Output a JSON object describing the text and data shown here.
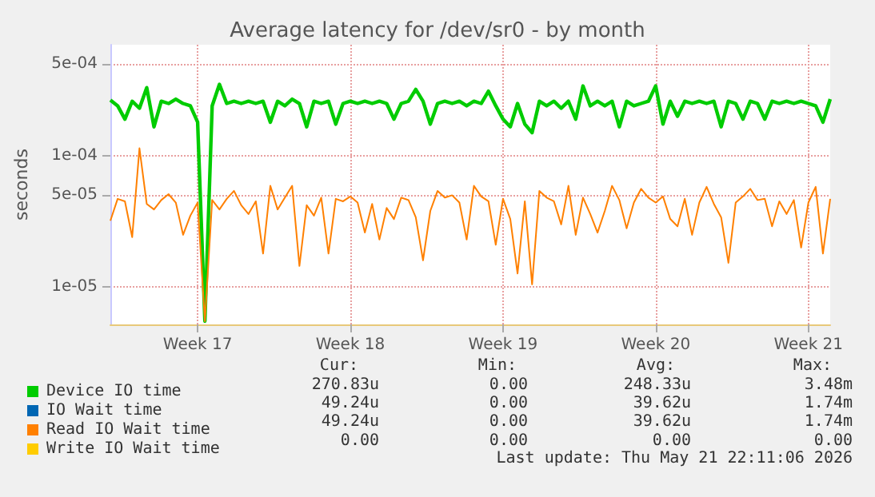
{
  "chart_data": {
    "type": "line",
    "title": "Average latency for /dev/sr0 - by month",
    "ylabel": "seconds",
    "log": "y",
    "grid": true,
    "legend": "bottom left",
    "marker": "none",
    "line_style": "solid",
    "categories": [
      null,
      null,
      null,
      null,
      null,
      null,
      null,
      null,
      null,
      null,
      null,
      null,
      "Week 17",
      null,
      null,
      null,
      null,
      null,
      null,
      null,
      null,
      null,
      null,
      null,
      null,
      null,
      null,
      null,
      null,
      null,
      null,
      null,
      null,
      "Week 18",
      null,
      null,
      null,
      null,
      null,
      null,
      null,
      null,
      null,
      null,
      null,
      null,
      null,
      null,
      null,
      null,
      null,
      null,
      null,
      null,
      "Week 19",
      null,
      null,
      null,
      null,
      null,
      null,
      null,
      null,
      null,
      null,
      null,
      null,
      null,
      null,
      null,
      null,
      null,
      null,
      null,
      null,
      "Week 20",
      null,
      null,
      null,
      null,
      null,
      null,
      null,
      null,
      null,
      null,
      null,
      null,
      null,
      null,
      null,
      null,
      null,
      null,
      null,
      null,
      "Week 21",
      null,
      null,
      null
    ],
    "ylim": [
      5.2e-06,
      0.0007
    ],
    "yticks": [
      {
        "value": 0.0005,
        "label": "5e-04"
      },
      {
        "value": 0.0001,
        "label": "1e-04"
      },
      {
        "value": 5e-05,
        "label": "5e-05"
      },
      {
        "value": 1e-05,
        "label": "1e-05"
      }
    ],
    "series": [
      {
        "name": "Device IO time",
        "color": "#00cc00",
        "values": [
          0.000265,
          0.00024,
          0.00019,
          0.00026,
          0.00023,
          0.00033,
          0.000166,
          0.00026,
          0.00025,
          0.00027,
          0.00025,
          0.00024,
          0.00018,
          5.5e-06,
          0.00024,
          0.00035,
          0.00025,
          0.00026,
          0.00025,
          0.00026,
          0.00025,
          0.00026,
          0.00018,
          0.00026,
          0.00024,
          0.00027,
          0.00025,
          0.000166,
          0.00026,
          0.00025,
          0.00026,
          0.000174,
          0.00025,
          0.00026,
          0.00025,
          0.00026,
          0.00025,
          0.00026,
          0.00025,
          0.00019,
          0.00025,
          0.00026,
          0.00032,
          0.00026,
          0.000174,
          0.00025,
          0.00026,
          0.00025,
          0.00026,
          0.00024,
          0.00026,
          0.00025,
          0.00031,
          0.00024,
          0.00019,
          0.000166,
          0.00025,
          0.000174,
          0.00015,
          0.00026,
          0.00024,
          0.00026,
          0.00023,
          0.00026,
          0.00019,
          0.00034,
          0.00024,
          0.00026,
          0.00024,
          0.00026,
          0.000166,
          0.00026,
          0.00024,
          0.00025,
          0.00026,
          0.00034,
          0.000174,
          0.00026,
          0.0002,
          0.00026,
          0.00025,
          0.00026,
          0.00025,
          0.00026,
          0.000166,
          0.00026,
          0.00025,
          0.00019,
          0.00026,
          0.00025,
          0.00019,
          0.00026,
          0.00025,
          0.00026,
          0.00025,
          0.00026,
          0.00025,
          0.00024,
          0.00018,
          0.00027
        ]
      },
      {
        "name": "IO Wait time",
        "color": "#0066b3",
        "values": [
          null,
          null,
          null,
          null,
          null,
          null,
          null,
          null,
          null,
          null,
          null,
          null,
          null,
          null,
          null,
          null,
          null,
          null,
          null,
          null,
          null,
          null,
          null,
          null,
          null,
          null,
          null,
          null,
          null,
          null,
          null,
          null,
          null,
          null,
          null,
          null,
          null,
          null,
          null,
          null,
          null,
          null,
          null,
          null,
          null,
          null,
          null,
          null,
          null,
          null,
          null,
          null,
          null,
          null,
          null,
          null,
          null,
          null,
          null,
          null,
          null,
          null,
          null,
          null,
          null,
          null,
          null,
          null,
          null,
          null,
          null,
          null,
          null,
          null,
          null,
          null,
          null,
          null,
          null,
          null,
          null,
          null,
          null,
          null,
          null,
          null,
          null,
          null,
          null,
          null,
          null,
          null,
          null,
          null,
          null,
          null,
          null,
          null,
          null,
          null
        ]
      },
      {
        "name": "Read IO Wait time",
        "color": "#ff8000",
        "values": [
          3.2e-05,
          4.7e-05,
          4.5e-05,
          2.4e-05,
          0.000114,
          4.3e-05,
          3.9e-05,
          4.6e-05,
          5.1e-05,
          4.4e-05,
          2.5e-05,
          3.5e-05,
          4.4e-05,
          5.5e-06,
          4.6e-05,
          3.9e-05,
          4.7e-05,
          5.4e-05,
          4.2e-05,
          3.6e-05,
          4.5e-05,
          1.8e-05,
          5.9e-05,
          3.9e-05,
          4.8e-05,
          5.9e-05,
          1.45e-05,
          4.2e-05,
          3.5e-05,
          4.8e-05,
          1.8e-05,
          4.7e-05,
          4.5e-05,
          4.9e-05,
          4.4e-05,
          2.6e-05,
          4.3e-05,
          2.3e-05,
          4e-05,
          3.3e-05,
          4.8e-05,
          4.6e-05,
          3.4e-05,
          1.6e-05,
          3.8e-05,
          5.4e-05,
          4.8e-05,
          5e-05,
          4.4e-05,
          2.3e-05,
          5.9e-05,
          4.9e-05,
          4.5e-05,
          2.1e-05,
          4.7e-05,
          3.3e-05,
          1.27e-05,
          4.5e-05,
          1.05e-05,
          5.4e-05,
          4.8e-05,
          4.5e-05,
          3e-05,
          5.9e-05,
          2.5e-05,
          4.8e-05,
          3.6e-05,
          2.6e-05,
          3.8e-05,
          5.9e-05,
          4.6e-05,
          2.8e-05,
          4.4e-05,
          5.6e-05,
          4.8e-05,
          4.4e-05,
          4.9e-05,
          3.3e-05,
          2.9e-05,
          4.7e-05,
          2.5e-05,
          4.4e-05,
          5.8e-05,
          4.3e-05,
          3.4e-05,
          1.53e-05,
          4.4e-05,
          4.9e-05,
          5.6e-05,
          4.6e-05,
          4.7e-05,
          2.9e-05,
          4.5e-05,
          3.6e-05,
          4.6e-05,
          2e-05,
          4.4e-05,
          5.8e-05,
          1.8e-05,
          4.7e-05
        ]
      },
      {
        "name": "Write IO Wait time",
        "color": "#ffcc00",
        "values": [
          null,
          null,
          null,
          null,
          null,
          null,
          null,
          null,
          null,
          null,
          null,
          null,
          null,
          null,
          null,
          null,
          null,
          null,
          null,
          null,
          null,
          null,
          null,
          null,
          null,
          null,
          null,
          null,
          null,
          null,
          null,
          null,
          null,
          null,
          null,
          null,
          null,
          null,
          null,
          null,
          null,
          null,
          null,
          null,
          null,
          null,
          null,
          null,
          null,
          null,
          null,
          null,
          null,
          null,
          null,
          null,
          null,
          null,
          null,
          null,
          null,
          null,
          null,
          null,
          null,
          null,
          null,
          null,
          null,
          null,
          null,
          null,
          null,
          null,
          null,
          null,
          null,
          null,
          null,
          null,
          null,
          null,
          null,
          null,
          null,
          null,
          null,
          null,
          null,
          null,
          null,
          null,
          null,
          null,
          null,
          null,
          null,
          null,
          null,
          null
        ]
      }
    ],
    "annotations": [
      "Cur:",
      "Min:",
      "Avg:",
      "Max:",
      "270.83u",
      "0.00",
      "248.33u",
      "3.48m",
      "49.24u",
      "0.00",
      "39.62u",
      "1.74m",
      "49.24u",
      "0.00",
      "39.62u",
      "1.74m",
      "0.00",
      "0.00",
      "0.00",
      "0.00",
      "Last update: Thu May 21 22:11:06 2026"
    ]
  }
}
